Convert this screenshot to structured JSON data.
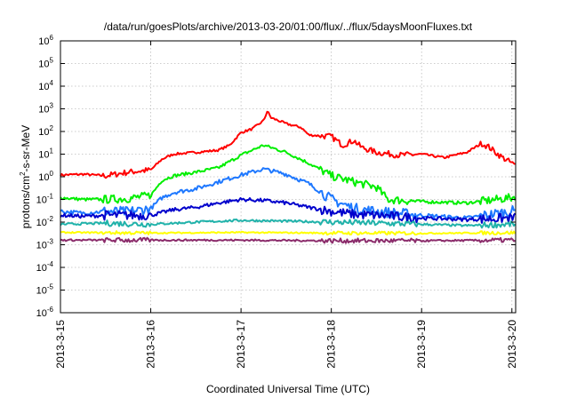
{
  "chart_data": {
    "type": "line",
    "title": "/data/run/goesPlots/archive/2013-03-20/01:00/flux/../flux/5daysMoonFluxes.txt",
    "xlabel": "Coordinated Universal Time (UTC)",
    "ylabel": {
      "base": "protons/cm",
      "sup": "2",
      "rest": "-s-sr-MeV"
    },
    "y_scale": "log",
    "y_range": [
      1e-06,
      1000000.0
    ],
    "y_ticks": [
      {
        "value": 1e-06,
        "base": "10",
        "exp": "-6"
      },
      {
        "value": 1e-05,
        "base": "10",
        "exp": "-5"
      },
      {
        "value": 0.0001,
        "base": "10",
        "exp": "-4"
      },
      {
        "value": 0.001,
        "base": "10",
        "exp": "-3"
      },
      {
        "value": 0.01,
        "base": "10",
        "exp": "-2"
      },
      {
        "value": 0.1,
        "base": "10",
        "exp": "-1"
      },
      {
        "value": 1,
        "base": "10",
        "exp": "0"
      },
      {
        "value": 10.0,
        "base": "10",
        "exp": "1"
      },
      {
        "value": 100.0,
        "base": "10",
        "exp": "2"
      },
      {
        "value": 1000.0,
        "base": "10",
        "exp": "3"
      },
      {
        "value": 10000.0,
        "base": "10",
        "exp": "4"
      },
      {
        "value": 100000.0,
        "base": "10",
        "exp": "5"
      },
      {
        "value": 1000000.0,
        "base": "10",
        "exp": "6"
      }
    ],
    "x_range": [
      "2013-03-15T00:00",
      "2013-03-20T01:00"
    ],
    "x_ticks": [
      {
        "value": "2013-03-15T00:00",
        "label": "2013-3-15"
      },
      {
        "value": "2013-03-16T00:00",
        "label": "2013-3-16"
      },
      {
        "value": "2013-03-17T00:00",
        "label": "2013-3-17"
      },
      {
        "value": "2013-03-18T00:00",
        "label": "2013-3-18"
      },
      {
        "value": "2013-03-19T00:00",
        "label": "2013-3-19"
      },
      {
        "value": "2013-03-20T00:00",
        "label": "2013-3-20"
      }
    ],
    "grid": true,
    "legend": "none",
    "series": [
      {
        "color": "#ff0000",
        "points": [
          [
            "2013-03-15T00:00",
            1.2
          ],
          [
            "2013-03-15T06:00",
            1.3
          ],
          [
            "2013-03-15T12:00",
            1.1
          ],
          [
            "2013-03-15T18:00",
            1.6
          ],
          [
            "2013-03-16T00:00",
            2.0
          ],
          [
            "2013-03-16T03:00",
            6
          ],
          [
            "2013-03-16T06:00",
            10
          ],
          [
            "2013-03-16T12:00",
            12
          ],
          [
            "2013-03-16T18:00",
            15
          ],
          [
            "2013-03-16T21:00",
            25
          ],
          [
            "2013-03-17T00:00",
            90
          ],
          [
            "2013-03-17T03:00",
            130
          ],
          [
            "2013-03-17T06:00",
            300
          ],
          [
            "2013-03-17T07:00",
            800
          ],
          [
            "2013-03-17T08:00",
            400
          ],
          [
            "2013-03-17T10:00",
            300
          ],
          [
            "2013-03-17T12:00",
            220
          ],
          [
            "2013-03-17T16:00",
            150
          ],
          [
            "2013-03-17T18:00",
            70
          ],
          [
            "2013-03-18T00:00",
            60
          ],
          [
            "2013-03-18T03:00",
            25
          ],
          [
            "2013-03-18T06:00",
            40
          ],
          [
            "2013-03-18T08:00",
            20
          ],
          [
            "2013-03-18T12:00",
            12
          ],
          [
            "2013-03-18T18:00",
            9
          ],
          [
            "2013-03-19T00:00",
            10
          ],
          [
            "2013-03-19T06:00",
            7
          ],
          [
            "2013-03-19T12:00",
            12
          ],
          [
            "2013-03-19T16:00",
            30
          ],
          [
            "2013-03-19T18:00",
            20
          ],
          [
            "2013-03-19T21:00",
            8
          ],
          [
            "2013-03-20T00:00",
            4
          ],
          [
            "2013-03-20T01:00",
            3
          ]
        ]
      },
      {
        "color": "#00ee00",
        "points": [
          [
            "2013-03-15T00:00",
            0.12
          ],
          [
            "2013-03-15T06:00",
            0.1
          ],
          [
            "2013-03-15T12:00",
            0.1
          ],
          [
            "2013-03-15T18:00",
            0.11
          ],
          [
            "2013-03-16T00:00",
            0.15
          ],
          [
            "2013-03-16T03:00",
            0.7
          ],
          [
            "2013-03-16T06:00",
            1.1
          ],
          [
            "2013-03-16T12:00",
            1.6
          ],
          [
            "2013-03-16T18:00",
            2.5
          ],
          [
            "2013-03-17T00:00",
            9
          ],
          [
            "2013-03-17T06:00",
            25
          ],
          [
            "2013-03-17T12:00",
            12
          ],
          [
            "2013-03-17T18:00",
            4
          ],
          [
            "2013-03-18T00:00",
            1.1
          ],
          [
            "2013-03-18T06:00",
            0.6
          ],
          [
            "2013-03-18T12:00",
            0.35
          ],
          [
            "2013-03-18T15:00",
            0.1
          ],
          [
            "2013-03-19T00:00",
            0.08
          ],
          [
            "2013-03-19T12:00",
            0.07
          ],
          [
            "2013-03-20T00:00",
            0.12
          ],
          [
            "2013-03-20T01:00",
            0.14
          ]
        ]
      },
      {
        "color": "#1e78ff",
        "points": [
          [
            "2013-03-15T00:00",
            0.03
          ],
          [
            "2013-03-15T06:00",
            0.025
          ],
          [
            "2013-03-15T12:00",
            0.03
          ],
          [
            "2013-03-15T18:00",
            0.028
          ],
          [
            "2013-03-16T00:00",
            0.04
          ],
          [
            "2013-03-16T03:00",
            0.12
          ],
          [
            "2013-03-16T06:00",
            0.2
          ],
          [
            "2013-03-16T12:00",
            0.3
          ],
          [
            "2013-03-16T18:00",
            0.6
          ],
          [
            "2013-03-17T00:00",
            1.2
          ],
          [
            "2013-03-17T06:00",
            2.2
          ],
          [
            "2013-03-17T12:00",
            1.3
          ],
          [
            "2013-03-17T18:00",
            0.5
          ],
          [
            "2013-03-18T00:00",
            0.1
          ],
          [
            "2013-03-18T06:00",
            0.04
          ],
          [
            "2013-03-18T12:00",
            0.03
          ],
          [
            "2013-03-19T00:00",
            0.02
          ],
          [
            "2013-03-19T12:00",
            0.015
          ],
          [
            "2013-03-20T00:00",
            0.03
          ],
          [
            "2013-03-20T01:00",
            0.03
          ]
        ]
      },
      {
        "color": "#0000cc",
        "points": [
          [
            "2013-03-15T00:00",
            0.02
          ],
          [
            "2013-03-15T06:00",
            0.018
          ],
          [
            "2013-03-15T12:00",
            0.02
          ],
          [
            "2013-03-15T18:00",
            0.02
          ],
          [
            "2013-03-16T00:00",
            0.02
          ],
          [
            "2013-03-16T06:00",
            0.035
          ],
          [
            "2013-03-16T12:00",
            0.045
          ],
          [
            "2013-03-16T18:00",
            0.07
          ],
          [
            "2013-03-17T00:00",
            0.1
          ],
          [
            "2013-03-17T06:00",
            0.09
          ],
          [
            "2013-03-17T12:00",
            0.07
          ],
          [
            "2013-03-17T18:00",
            0.045
          ],
          [
            "2013-03-18T00:00",
            0.03
          ],
          [
            "2013-03-18T06:00",
            0.022
          ],
          [
            "2013-03-18T12:00",
            0.02
          ],
          [
            "2013-03-19T00:00",
            0.015
          ],
          [
            "2013-03-19T12:00",
            0.013
          ],
          [
            "2013-03-20T00:00",
            0.015
          ],
          [
            "2013-03-20T01:00",
            0.016
          ]
        ]
      },
      {
        "color": "#20b2aa",
        "points": [
          [
            "2013-03-15T00:00",
            0.008
          ],
          [
            "2013-03-15T12:00",
            0.009
          ],
          [
            "2013-03-16T00:00",
            0.008
          ],
          [
            "2013-03-16T12:00",
            0.01
          ],
          [
            "2013-03-17T00:00",
            0.012
          ],
          [
            "2013-03-17T12:00",
            0.011
          ],
          [
            "2013-03-18T00:00",
            0.01
          ],
          [
            "2013-03-18T12:00",
            0.009
          ],
          [
            "2013-03-19T00:00",
            0.008
          ],
          [
            "2013-03-19T12:00",
            0.007
          ],
          [
            "2013-03-20T00:00",
            0.008
          ],
          [
            "2013-03-20T01:00",
            0.008
          ]
        ]
      },
      {
        "color": "#ffff00",
        "points": [
          [
            "2013-03-15T00:00",
            0.0035
          ],
          [
            "2013-03-16T00:00",
            0.0033
          ],
          [
            "2013-03-17T00:00",
            0.0035
          ],
          [
            "2013-03-18T00:00",
            0.0033
          ],
          [
            "2013-03-19T00:00",
            0.0032
          ],
          [
            "2013-03-20T00:00",
            0.0034
          ],
          [
            "2013-03-20T01:00",
            0.0034
          ]
        ]
      },
      {
        "color": "#8b2c6b",
        "points": [
          [
            "2013-03-15T00:00",
            0.0016
          ],
          [
            "2013-03-16T00:00",
            0.0016
          ],
          [
            "2013-03-17T00:00",
            0.0016
          ],
          [
            "2013-03-18T00:00",
            0.0015
          ],
          [
            "2013-03-19T00:00",
            0.0015
          ],
          [
            "2013-03-20T00:00",
            0.0016
          ],
          [
            "2013-03-20T01:00",
            0.0016
          ]
        ]
      }
    ]
  }
}
